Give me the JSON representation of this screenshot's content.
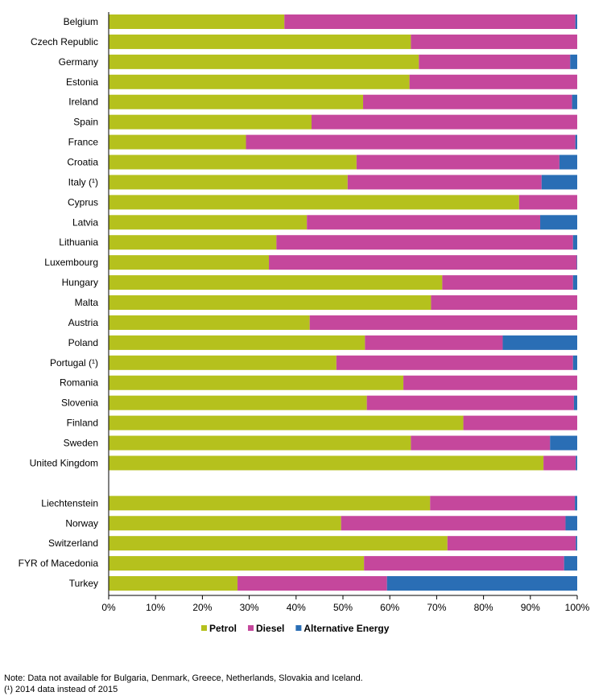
{
  "chart_data": {
    "type": "bar",
    "orientation": "horizontal",
    "stacked": true,
    "categories": [
      "Belgium",
      "Czech Republic",
      "Germany",
      "Estonia",
      "Ireland",
      "Spain",
      "France",
      "Croatia",
      "Italy (¹)",
      "Cyprus",
      "Latvia",
      "Lithuania",
      "Luxembourg",
      "Hungary",
      "Malta",
      "Austria",
      "Poland",
      "Portugal (¹)",
      "Romania",
      "Slovenia",
      "Finland",
      "Sweden",
      "United Kingdom",
      "",
      "Liechtenstein",
      "Norway",
      "Switzerland",
      "FYR of Macedonia",
      "Turkey"
    ],
    "series": [
      {
        "name": "Petrol",
        "color": "#b5c11d",
        "values": [
          37.5,
          64.5,
          66.2,
          64.2,
          54.3,
          43.3,
          29.3,
          52.9,
          51.0,
          87.6,
          42.3,
          35.8,
          34.2,
          71.2,
          68.8,
          42.9,
          54.7,
          48.6,
          62.9,
          55.1,
          75.7,
          64.5,
          92.8,
          null,
          68.6,
          49.6,
          72.3,
          54.5,
          27.5
        ]
      },
      {
        "name": "Diesel",
        "color": "#c5479c",
        "values": [
          62.1,
          35.5,
          32.3,
          35.8,
          44.6,
          56.7,
          70.3,
          43.3,
          41.4,
          12.4,
          49.8,
          63.3,
          65.7,
          27.9,
          31.2,
          57.1,
          29.4,
          50.5,
          37.1,
          44.2,
          24.3,
          29.7,
          6.9,
          null,
          30.9,
          47.9,
          27.4,
          42.7,
          31.9
        ]
      },
      {
        "name": "Alternative Energy",
        "color": "#2a6eb5",
        "values": [
          0.4,
          0.0,
          1.5,
          0.0,
          1.1,
          0.0,
          0.4,
          3.8,
          7.6,
          0.0,
          7.9,
          0.9,
          0.1,
          0.9,
          0.0,
          0.0,
          15.9,
          0.9,
          0.0,
          0.7,
          0.0,
          5.8,
          0.3,
          null,
          0.5,
          2.5,
          0.3,
          2.8,
          40.6
        ]
      }
    ],
    "xlim": [
      0,
      100
    ],
    "x_ticks": [
      "0%",
      "10%",
      "20%",
      "30%",
      "40%",
      "50%",
      "60%",
      "70%",
      "80%",
      "90%",
      "100%"
    ],
    "grid": false,
    "legend_position": "bottom"
  },
  "notes": [
    "Note:  Data not available for Bulgaria, Denmark, Greece, Netherlands, Slovakia and Iceland.",
    "(¹) 2014 data instead of 2015"
  ]
}
